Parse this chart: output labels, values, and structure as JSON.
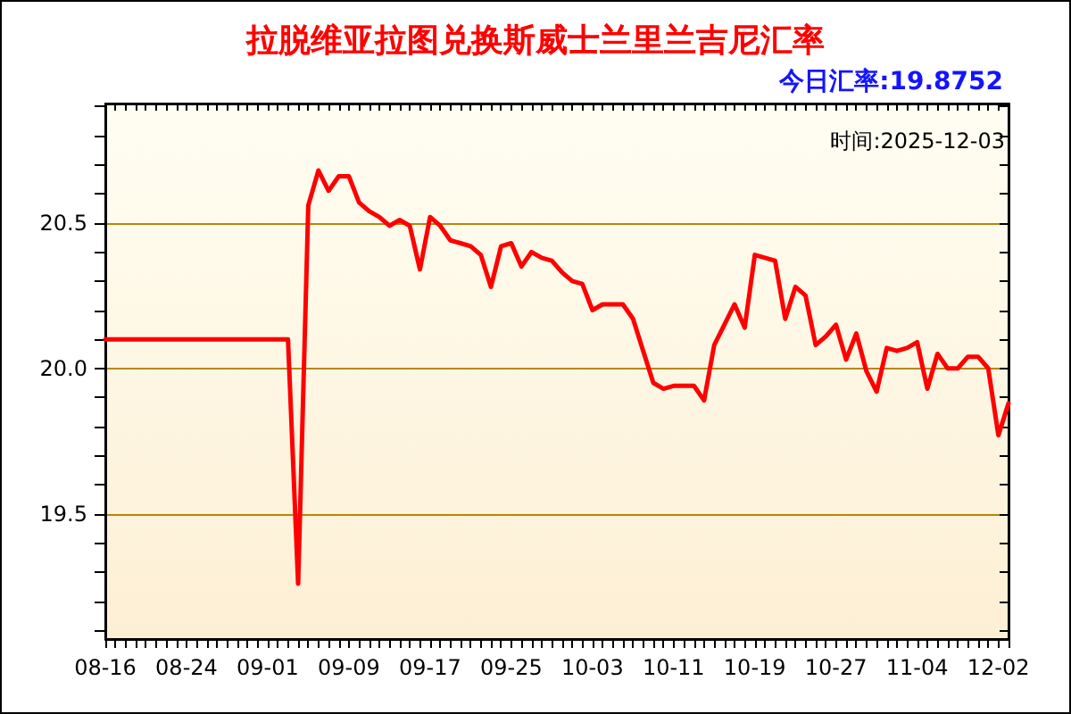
{
  "chart_data": {
    "type": "line",
    "title": "拉脱维亚拉图兑换斯威士兰里兰吉尼汇率",
    "subtitle": "今日汇率:19.8752",
    "annotations": [
      "时间:2025-12-03"
    ],
    "categories": [
      "08-16",
      null,
      null,
      null,
      null,
      null,
      null,
      null,
      "08-24",
      null,
      null,
      null,
      null,
      null,
      null,
      null,
      "09-01",
      null,
      null,
      null,
      null,
      null,
      null,
      null,
      "09-09",
      null,
      null,
      null,
      null,
      null,
      null,
      null,
      "09-17",
      null,
      null,
      null,
      null,
      null,
      null,
      null,
      "09-25",
      null,
      null,
      null,
      null,
      null,
      null,
      null,
      "10-03",
      null,
      null,
      null,
      null,
      null,
      null,
      null,
      "10-11",
      null,
      null,
      null,
      null,
      null,
      null,
      null,
      "10-19",
      null,
      null,
      null,
      null,
      null,
      null,
      null,
      "10-27",
      null,
      null,
      null,
      null,
      null,
      null,
      null,
      "11-04",
      null,
      null,
      null,
      null,
      null,
      null,
      null,
      "12-02",
      null
    ],
    "series": [
      {
        "color": "#ff0000",
        "values": [
          20.1,
          20.1,
          20.1,
          20.1,
          20.1,
          20.1,
          20.1,
          20.1,
          20.1,
          20.1,
          20.1,
          20.1,
          20.1,
          20.1,
          20.1,
          20.1,
          20.1,
          20.1,
          20.1,
          19.26,
          20.56,
          20.68,
          20.61,
          20.66,
          20.66,
          20.57,
          20.54,
          20.52,
          20.49,
          20.51,
          20.49,
          20.34,
          20.52,
          20.49,
          20.44,
          20.43,
          20.42,
          20.39,
          20.28,
          20.42,
          20.43,
          20.35,
          20.4,
          20.38,
          20.37,
          20.33,
          20.3,
          20.29,
          20.2,
          20.22,
          20.22,
          20.22,
          20.17,
          20.06,
          19.95,
          19.93,
          19.94,
          19.94,
          19.94,
          19.89,
          20.08,
          20.15,
          20.22,
          20.14,
          20.39,
          20.38,
          20.37,
          20.17,
          20.28,
          20.25,
          20.08,
          20.11,
          20.15,
          20.03,
          20.12,
          19.99,
          19.92,
          20.07,
          20.06,
          20.07,
          20.09,
          19.93,
          20.05,
          20,
          20,
          20.04,
          20.04,
          20,
          19.77,
          19.88
        ]
      }
    ],
    "ylim": [
      19.07,
      20.91
    ],
    "yticks": [
      {
        "value": 19.1,
        "label": null
      },
      {
        "value": 19.2,
        "label": null
      },
      {
        "value": 19.3,
        "label": null
      },
      {
        "value": 19.4,
        "label": null
      },
      19.5,
      {
        "value": 19.6,
        "label": null
      },
      {
        "value": 19.7,
        "label": null
      },
      {
        "value": 19.8,
        "label": null
      },
      {
        "value": 19.9,
        "label": null
      },
      {
        "value": 20,
        "label": "20.0"
      },
      {
        "value": 20.1,
        "label": null
      },
      {
        "value": 20.2,
        "label": null
      },
      {
        "value": 20.3,
        "label": null
      },
      {
        "value": 20.4,
        "label": null
      },
      20.5,
      {
        "value": 20.6,
        "label": null
      },
      {
        "value": 20.7,
        "label": null
      },
      {
        "value": 20.8,
        "label": null
      },
      {
        "value": 20.9,
        "label": null
      }
    ],
    "grid": "y",
    "marker": "none",
    "line_style": "solid"
  }
}
